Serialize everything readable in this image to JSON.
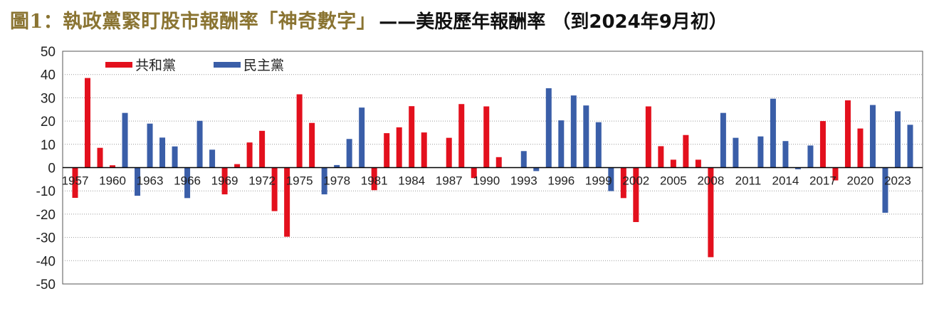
{
  "title": {
    "main": "圖1：執政黨緊盯股市報酬率「神奇數字」",
    "sub": "——美股歷年報酬率 （到2024年9月初）"
  },
  "chart_data": {
    "type": "bar",
    "title": "圖1：執政黨緊盯股市報酬率「神奇數字」——美股歷年報酬率 （到2024年9月初）",
    "xlabel": "",
    "ylabel": "",
    "ylim": [
      -50,
      50
    ],
    "yticks": [
      50,
      40,
      30,
      20,
      10,
      0,
      -10,
      -20,
      -30,
      -40,
      -50
    ],
    "grid": true,
    "legend_position": "top-left",
    "x_start": 1957,
    "x_end": 2024,
    "xtick_labels": [
      "1957",
      "1960",
      "1963",
      "1966",
      "1969",
      "1972",
      "1975",
      "1978",
      "1981",
      "1984",
      "1987",
      "1990",
      "1993",
      "1996",
      "1999",
      "2002",
      "2005",
      "2008",
      "2011",
      "2014",
      "2017",
      "2020",
      "2023"
    ],
    "series": [
      {
        "name": "共和黨",
        "color": "#e3101d",
        "points": [
          {
            "x": 1957,
            "y": -13
          },
          {
            "x": 1958,
            "y": 38.5
          },
          {
            "x": 1959,
            "y": 8.5
          },
          {
            "x": 1960,
            "y": 1
          },
          {
            "x": 1969,
            "y": -11.5
          },
          {
            "x": 1970,
            "y": 1.5
          },
          {
            "x": 1971,
            "y": 10.8
          },
          {
            "x": 1972,
            "y": 15.8
          },
          {
            "x": 1973,
            "y": -18.7
          },
          {
            "x": 1974,
            "y": -29.7
          },
          {
            "x": 1975,
            "y": 31.5
          },
          {
            "x": 1976,
            "y": 19.2
          },
          {
            "x": 1981,
            "y": -9.7
          },
          {
            "x": 1982,
            "y": 14.8
          },
          {
            "x": 1983,
            "y": 17.3
          },
          {
            "x": 1984,
            "y": 26.4
          },
          {
            "x": 1985,
            "y": 15.1
          },
          {
            "x": 1987,
            "y": 12.8
          },
          {
            "x": 1988,
            "y": 27.3
          },
          {
            "x": 1989,
            "y": -4.5
          },
          {
            "x": 1990,
            "y": 26.3
          },
          {
            "x": 1991,
            "y": 4.5
          },
          {
            "x": 2001,
            "y": -13.1
          },
          {
            "x": 2002,
            "y": -23.4
          },
          {
            "x": 2003,
            "y": 26.3
          },
          {
            "x": 2004,
            "y": 9.2
          },
          {
            "x": 2005,
            "y": 3.4
          },
          {
            "x": 2006,
            "y": 14
          },
          {
            "x": 2007,
            "y": 3.4
          },
          {
            "x": 2008,
            "y": -38.5
          },
          {
            "x": 2017,
            "y": 20
          },
          {
            "x": 2018,
            "y": -5.5
          },
          {
            "x": 2019,
            "y": 28.9
          },
          {
            "x": 2020,
            "y": 16.8
          }
        ]
      },
      {
        "name": "民主黨",
        "color": "#3a5ea8",
        "points": [
          {
            "x": 1961,
            "y": 23.5
          },
          {
            "x": 1962,
            "y": -12.1
          },
          {
            "x": 1963,
            "y": 18.9
          },
          {
            "x": 1964,
            "y": 12.9
          },
          {
            "x": 1965,
            "y": 9.1
          },
          {
            "x": 1966,
            "y": -13.1
          },
          {
            "x": 1967,
            "y": 20.1
          },
          {
            "x": 1968,
            "y": 7.7
          },
          {
            "x": 1977,
            "y": -11.5
          },
          {
            "x": 1978,
            "y": 1.1
          },
          {
            "x": 1979,
            "y": 12.3
          },
          {
            "x": 1980,
            "y": 25.8
          },
          {
            "x": 1993,
            "y": 7.1
          },
          {
            "x": 1994,
            "y": -1.5
          },
          {
            "x": 1995,
            "y": 34.1
          },
          {
            "x": 1996,
            "y": 20.3
          },
          {
            "x": 1997,
            "y": 31
          },
          {
            "x": 1998,
            "y": 26.7
          },
          {
            "x": 1999,
            "y": 19.5
          },
          {
            "x": 2000,
            "y": -10.1
          },
          {
            "x": 2009,
            "y": 23.5
          },
          {
            "x": 2010,
            "y": 12.8
          },
          {
            "x": 2012,
            "y": 13.4
          },
          {
            "x": 2013,
            "y": 29.6
          },
          {
            "x": 2014,
            "y": 11.4
          },
          {
            "x": 2015,
            "y": -0.7
          },
          {
            "x": 2016,
            "y": 9.5
          },
          {
            "x": 2021,
            "y": 26.9
          },
          {
            "x": 2022,
            "y": -19.4
          },
          {
            "x": 2023,
            "y": 24.2
          },
          {
            "x": 2024,
            "y": 18.4
          }
        ]
      }
    ]
  }
}
